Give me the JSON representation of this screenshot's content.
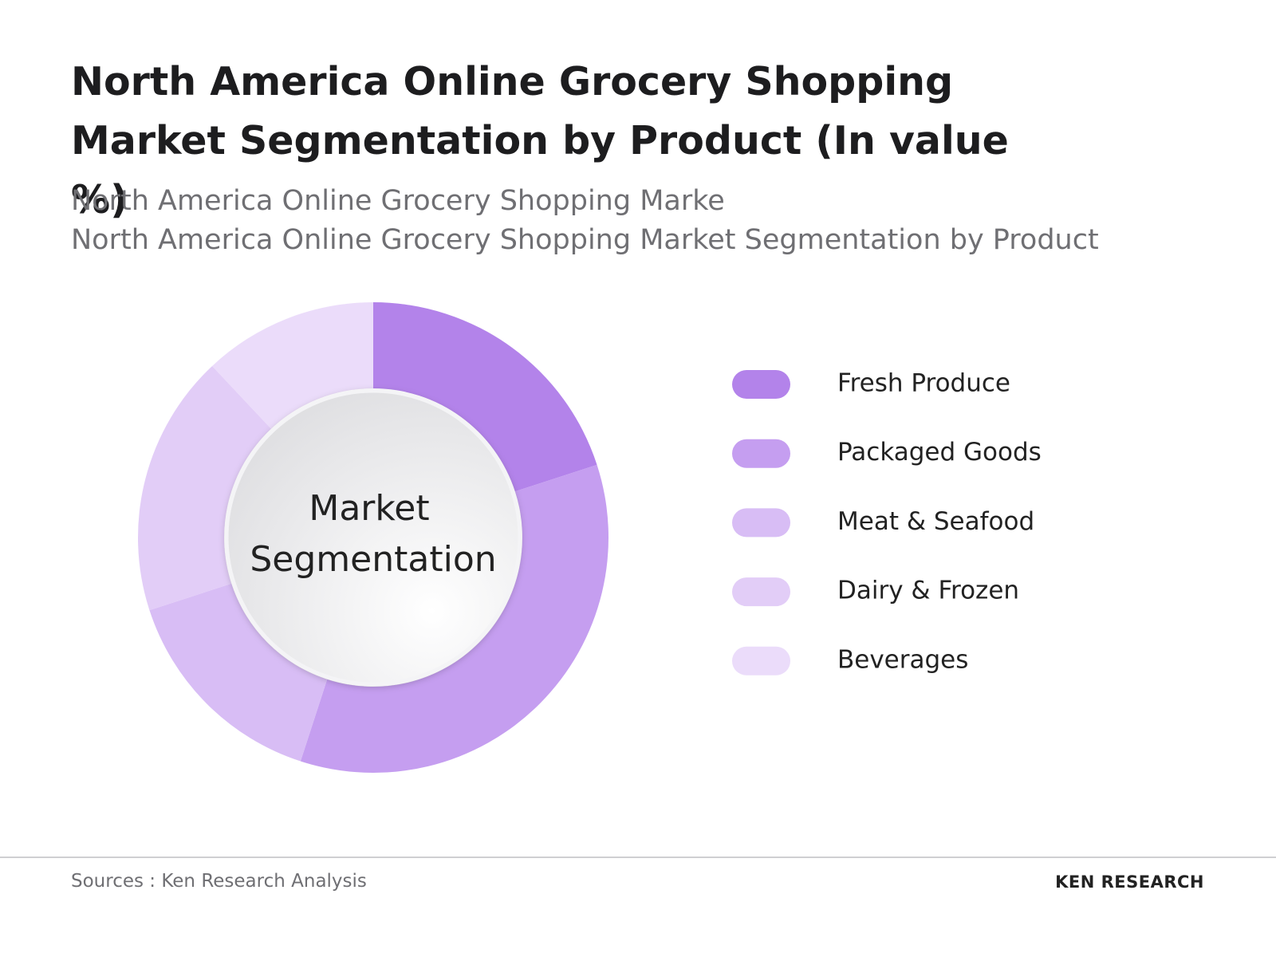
{
  "chart_data": {
    "type": "donut",
    "title": "North America Online Grocery Shopping Market Segmentation by Product (In value %)",
    "subtitle": [
      "North America Online Grocery Shopping Marke",
      "North America Online Grocery Shopping Market Segmentation by Product"
    ],
    "center_label": "Market Segmentation",
    "categories": [
      "Fresh Produce",
      "Packaged Goods",
      "Meat & Seafood",
      "Dairy & Frozen",
      "Beverages"
    ],
    "values": [
      20,
      35,
      15,
      18,
      12
    ],
    "colors": [
      "#b383ea",
      "#c59ef0",
      "#d8bdf5",
      "#e2cdf7",
      "#ebdcfa"
    ],
    "source": "Sources : Ken Research Analysis",
    "logo": "KEN RESEARCH"
  }
}
